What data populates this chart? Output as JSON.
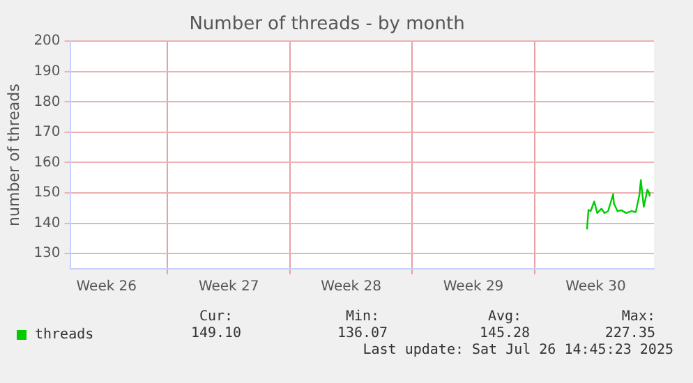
{
  "chart_data": {
    "type": "line",
    "title": "Number of threads - by month",
    "ylabel": "number of threads",
    "x": [
      "2025-07-23T00:00",
      "2025-07-23T02:00",
      "2025-07-23T05:00",
      "2025-07-23T10:00",
      "2025-07-23T14:00",
      "2025-07-23T20:00",
      "2025-07-24T00:00",
      "2025-07-24T05:00",
      "2025-07-24T12:00",
      "2025-07-24T13:00",
      "2025-07-24T18:00",
      "2025-07-24T23:00",
      "2025-07-25T06:00",
      "2025-07-25T13:00",
      "2025-07-25T19:00",
      "2025-07-26T00:00",
      "2025-07-26T02:00",
      "2025-07-26T06:00",
      "2025-07-26T07:00",
      "2025-07-26T11:00",
      "2025-07-26T13:00",
      "2025-07-26T14:00"
    ],
    "series": [
      {
        "name": "threads",
        "color": "#00cc00",
        "values": [
          138.0,
          144.4,
          144.0,
          147.2,
          143.4,
          144.8,
          143.4,
          144.0,
          149.6,
          146.5,
          144.0,
          144.3,
          143.4,
          144.0,
          143.7,
          149.3,
          154.3,
          145.4,
          146.5,
          151.1,
          150.1,
          149.1
        ]
      }
    ],
    "xlim": [
      "2025-06-23T10:00",
      "2025-07-26T20:00"
    ],
    "xticks": [
      {
        "value": "2025-06-25T12:00",
        "label": "Week 26"
      },
      {
        "value": "2025-06-29",
        "label": null
      },
      {
        "value": "2025-07-02T12:00",
        "label": "Week 27"
      },
      {
        "value": "2025-07-06",
        "label": null
      },
      {
        "value": "2025-07-09T12:00",
        "label": "Week 28"
      },
      {
        "value": "2025-07-13",
        "label": null
      },
      {
        "value": "2025-07-16T12:00",
        "label": "Week 29"
      },
      {
        "value": "2025-07-20",
        "label": null
      },
      {
        "value": "2025-07-23T12:00",
        "label": "Week 30"
      }
    ],
    "ylim": [
      125,
      200
    ],
    "yticks": [
      130,
      140,
      150,
      160,
      170,
      180,
      190,
      200
    ],
    "grid": true,
    "legend": "bottom",
    "marker": "none",
    "line_style": "solid",
    "annotations": [
      "Cur:",
      "149.10",
      "Min:",
      "136.07",
      "Avg:",
      "145.28",
      "Max:",
      "227.35",
      "Last update: Sat Jul 26 14:45:23 2025"
    ]
  }
}
